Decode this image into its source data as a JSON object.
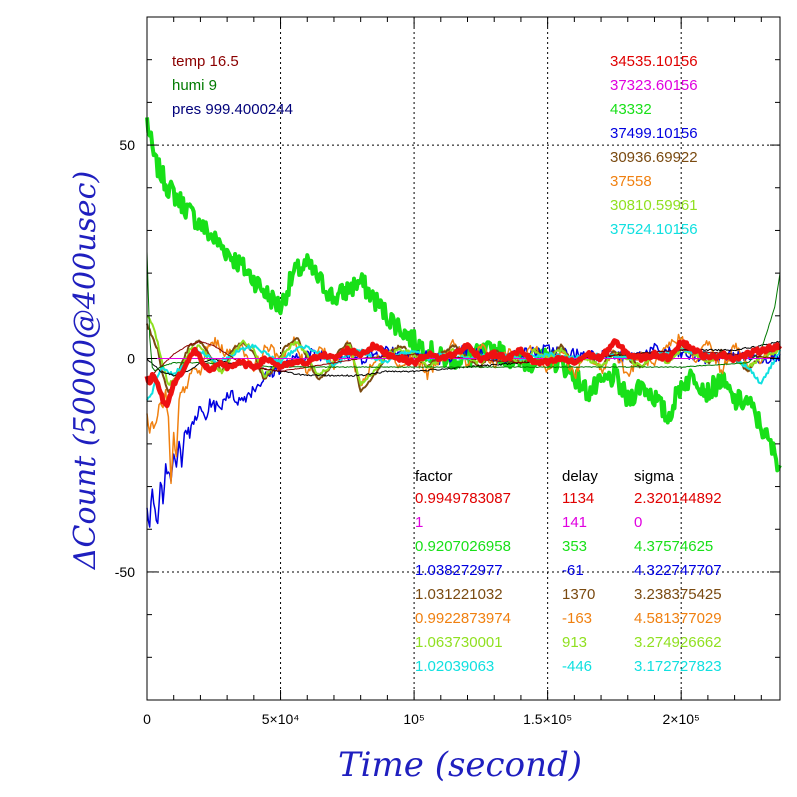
{
  "chart_data": {
    "type": "line",
    "xlabel": "Time (second)",
    "ylabel": "ΔCount (50000@400usec)",
    "xlim": [
      0,
      237000
    ],
    "ylim": [
      -80,
      80
    ],
    "grid": true,
    "x_ticks": [
      {
        "value": 0,
        "label": "0"
      },
      {
        "value": 50000,
        "label": "5×10⁴"
      },
      {
        "value": 100000,
        "label": "10⁵"
      },
      {
        "value": 150000,
        "label": "1.5×10⁵"
      },
      {
        "value": 200000,
        "label": "2×10⁵"
      }
    ],
    "y_ticks": [
      {
        "value": 50,
        "label": "50"
      },
      {
        "value": 0,
        "label": "0"
      },
      {
        "value": -50,
        "label": "-50"
      }
    ],
    "env": [
      {
        "text": "temp 16.5",
        "color": "#8b0000"
      },
      {
        "text": "humi 9",
        "color": "#007a00"
      },
      {
        "text": "pres 999.4000244",
        "color": "#00007a"
      }
    ],
    "series_values": [
      {
        "text": "34535.10156",
        "color": "#e00000"
      },
      {
        "text": "37323.60156",
        "color": "#e000e0"
      },
      {
        "text": "43332",
        "color": "#18e018"
      },
      {
        "text": "37499.10156",
        "color": "#0000e0"
      },
      {
        "text": "30936.69922",
        "color": "#7a4a10"
      },
      {
        "text": "37558",
        "color": "#f08010"
      },
      {
        "text": "30810.59961",
        "color": "#90e020"
      },
      {
        "text": "37524.10156",
        "color": "#10e0e0"
      }
    ],
    "table": {
      "headers": [
        "factor",
        "delay",
        "sigma"
      ],
      "rows": [
        {
          "factor": "0.9949783087",
          "delay": "1134",
          "sigma": "2.320144892",
          "color": "#e00000"
        },
        {
          "factor": "1",
          "delay": "141",
          "sigma": "0",
          "color": "#e000e0"
        },
        {
          "factor": "0.9207026958",
          "delay": "353",
          "sigma": "4.37574625",
          "color": "#18e018"
        },
        {
          "factor": "1.038272977",
          "delay": "-61",
          "sigma": "4.322747707",
          "color": "#0000e0"
        },
        {
          "factor": "1.031221032",
          "delay": "1370",
          "sigma": "3.238375425",
          "color": "#7a4a10"
        },
        {
          "factor": "0.9922873974",
          "delay": "-163",
          "sigma": "4.581377029",
          "color": "#f08010"
        },
        {
          "factor": "1.063730001",
          "delay": "913",
          "sigma": "3.274926662",
          "color": "#90e020"
        },
        {
          "factor": "1.02039063",
          "delay": "-446",
          "sigma": "3.172727823",
          "color": "#10e0e0"
        }
      ]
    },
    "series": [
      {
        "color": "#18e018",
        "width": 4,
        "noise": 2.5,
        "x": [
          0,
          1000,
          3000,
          8000,
          15000,
          22000,
          30000,
          38000,
          45000,
          50000,
          55000,
          60000,
          65000,
          70000,
          80000,
          90000,
          100000,
          110000,
          120000,
          130000,
          140000,
          150000,
          155000,
          160000,
          165000,
          170000,
          175000,
          180000,
          185000,
          190000,
          195000,
          200000,
          205000,
          210000,
          215000,
          220000,
          225000,
          230000,
          237000
        ],
        "y": [
          56,
          52,
          46,
          40,
          35,
          30,
          25,
          20,
          15,
          12,
          20,
          22,
          18,
          14,
          18,
          10,
          4,
          0,
          0,
          2,
          -1,
          0,
          -1,
          -4,
          -8,
          -6,
          -4,
          -10,
          -6,
          -9,
          -14,
          -6,
          -4,
          -8,
          -5,
          -10,
          -10,
          -16,
          -25
        ]
      },
      {
        "color": "#0000e0",
        "width": 1.5,
        "noise": 1.5,
        "x": [
          0,
          1000,
          2000,
          3000,
          4000,
          5000,
          6000,
          7000,
          8000,
          9000,
          10000,
          11000,
          12000,
          13000,
          14000,
          16000,
          18000,
          20000,
          22000,
          24000,
          27000,
          30000,
          35000,
          40000,
          45000,
          50000,
          60000,
          70000,
          80000,
          90000,
          100000,
          110000,
          120000,
          130000,
          140000,
          150000,
          160000,
          170000,
          180000,
          190000,
          200000,
          210000,
          220000,
          230000,
          237000
        ],
        "y": [
          -35,
          -40,
          -30,
          -35,
          -38,
          -28,
          -33,
          -25,
          -27,
          -30,
          -22,
          -26,
          -20,
          -24,
          -16,
          -18,
          -14,
          -12,
          -14,
          -10,
          -12,
          -8,
          -10,
          -7,
          -4,
          -2,
          1,
          1,
          0,
          2,
          1,
          0,
          2,
          0,
          1,
          2,
          1,
          1,
          0,
          2,
          1,
          0,
          1,
          0,
          1
        ]
      },
      {
        "color": "#f08010",
        "width": 1.5,
        "noise": 1.2,
        "x": [
          0,
          1000,
          2000,
          3000,
          4000,
          5000,
          6000,
          7000,
          8000,
          9000,
          10000,
          11000,
          12000,
          13000,
          15000,
          18000,
          20000,
          22000,
          25000,
          30000,
          35000,
          40000,
          45000,
          50000,
          55000,
          60000,
          65000,
          70000,
          75000,
          80000,
          85000,
          90000,
          95000,
          100000,
          105000,
          110000,
          115000,
          120000,
          125000,
          130000,
          135000,
          140000,
          145000,
          150000,
          155000,
          160000,
          165000,
          170000,
          175000,
          180000,
          185000,
          190000,
          195000,
          200000,
          205000,
          210000,
          215000,
          220000,
          225000,
          230000,
          237000
        ],
        "y": [
          -12,
          -18,
          -15,
          -16,
          -14,
          -10,
          -12,
          -8,
          -14,
          -30,
          -18,
          -24,
          -10,
          -8,
          -6,
          -2,
          -4,
          2,
          4,
          1,
          3,
          -2,
          3,
          0,
          4,
          -3,
          3,
          -2,
          4,
          -6,
          -1,
          2,
          -2,
          1,
          -4,
          0,
          4,
          -2,
          3,
          -2,
          2,
          -1,
          3,
          -3,
          2,
          -4,
          1,
          -3,
          2,
          -4,
          1,
          -2,
          3,
          5,
          -1,
          4,
          -3,
          3,
          -2,
          0,
          3
        ]
      },
      {
        "color": "#7a4a10",
        "width": 2,
        "noise": 0.4,
        "x": [
          0,
          2000,
          4000,
          6000,
          8000,
          10000,
          13000,
          16000,
          20000,
          24000,
          28000,
          32000,
          36000,
          40000,
          44000,
          48000,
          52000,
          56000,
          60000,
          64000,
          68000,
          72000,
          76000,
          80000,
          85000,
          90000,
          95000,
          100000,
          105000,
          110000,
          115000,
          120000,
          125000,
          130000,
          135000,
          140000,
          145000,
          150000,
          155000,
          160000,
          165000,
          170000,
          175000,
          180000,
          185000,
          190000,
          195000,
          200000,
          205000,
          210000,
          215000,
          220000,
          225000,
          230000,
          237000
        ],
        "y": [
          8,
          5,
          2,
          -4,
          -8,
          -6,
          -1,
          3,
          4,
          0,
          -3,
          2,
          4,
          1,
          -5,
          -2,
          3,
          5,
          0,
          -5,
          -3,
          2,
          4,
          -8,
          -4,
          1,
          3,
          1,
          -2,
          1,
          3,
          0,
          -2,
          2,
          0,
          -1,
          2,
          0,
          3,
          -1,
          1,
          -2,
          2,
          0,
          -2,
          1,
          -1,
          3,
          1,
          -1,
          2,
          0,
          -3,
          1,
          3
        ]
      },
      {
        "color": "#90e020",
        "width": 2,
        "noise": 0.5,
        "x": [
          0,
          2000,
          4000,
          6000,
          8000,
          10000,
          13000,
          16000,
          20000,
          24000,
          28000,
          32000,
          36000,
          40000,
          44000,
          48000,
          52000,
          56000,
          60000,
          64000,
          68000,
          72000,
          76000,
          80000,
          85000,
          90000,
          95000,
          100000,
          105000,
          110000,
          115000,
          120000,
          125000,
          130000,
          135000,
          140000,
          145000,
          150000,
          155000,
          160000,
          165000,
          170000,
          175000,
          180000,
          185000,
          190000,
          195000,
          200000,
          205000,
          210000,
          215000,
          220000,
          225000,
          230000,
          237000
        ],
        "y": [
          10,
          8,
          4,
          -2,
          -6,
          -5,
          -2,
          2,
          3,
          -1,
          -3,
          1,
          4,
          2,
          -4,
          -2,
          2,
          4,
          1,
          -4,
          -2,
          1,
          3,
          -6,
          -3,
          1,
          2,
          1,
          -2,
          0,
          2,
          0,
          -1,
          1,
          0,
          -1,
          2,
          0,
          2,
          -1,
          0,
          -2,
          1,
          0,
          -2,
          1,
          -1,
          2,
          1,
          -1,
          1,
          0,
          -2,
          0,
          2
        ]
      },
      {
        "color": "#10e0e0",
        "width": 2,
        "noise": 0.5,
        "x": [
          0,
          2000,
          4000,
          6000,
          8000,
          10000,
          14000,
          18000,
          22000,
          26000,
          30000,
          35000,
          40000,
          45000,
          50000,
          55000,
          60000,
          65000,
          70000,
          75000,
          80000,
          85000,
          90000,
          95000,
          100000,
          105000,
          110000,
          120000,
          130000,
          140000,
          150000,
          160000,
          170000,
          180000,
          190000,
          200000,
          210000,
          220000,
          225000,
          230000,
          237000
        ],
        "y": [
          -10,
          -8,
          -4,
          -2,
          -3,
          -4,
          -1,
          2,
          1,
          -1,
          0,
          2,
          3,
          1,
          -1,
          2,
          3,
          1,
          -2,
          1,
          2,
          0,
          -1,
          1,
          2,
          0,
          1,
          0,
          1,
          0,
          1,
          0,
          1,
          0,
          1,
          2,
          1,
          0,
          -2,
          -6,
          2
        ]
      },
      {
        "color": "#000000",
        "width": 1,
        "noise": 0.2,
        "x": [
          0,
          5000,
          10000,
          15000,
          20000,
          25000,
          30000,
          40000,
          50000,
          60000,
          70000,
          80000,
          90000,
          100000,
          120000,
          140000,
          160000,
          180000,
          200000,
          220000,
          230000,
          237000
        ],
        "y": [
          0,
          -3,
          -4,
          -3,
          -1,
          0,
          -1,
          -2,
          -3,
          -4,
          -4,
          -4,
          -3,
          -3,
          -2,
          -1,
          0,
          1,
          2,
          2,
          3,
          4
        ]
      },
      {
        "color": "#8b0000",
        "width": 1,
        "noise": 0.1,
        "x": [
          0,
          5000,
          10000,
          15000,
          20000,
          25000,
          30000,
          35000,
          40000,
          50000,
          60000,
          70000,
          80000,
          100000,
          120000,
          140000,
          160000,
          180000,
          200000,
          220000,
          237000
        ],
        "y": [
          -5,
          -2,
          1,
          3,
          4,
          3,
          1,
          -1,
          -2,
          -3,
          -2,
          -1,
          0,
          1,
          0,
          -1,
          0,
          1,
          2,
          1,
          0
        ]
      },
      {
        "color": "#007a00",
        "width": 1,
        "noise": 0.1,
        "x": [
          0,
          1000,
          2000,
          3000,
          5000,
          10000,
          20000,
          50000,
          100000,
          150000,
          200000,
          225000,
          230000,
          235000,
          237000
        ],
        "y": [
          25,
          5,
          -2,
          -3,
          -2,
          -1,
          -1,
          -2,
          -2,
          -2,
          -2,
          -1,
          2,
          12,
          20
        ]
      },
      {
        "color": "#e000e0",
        "width": 1,
        "noise": 0,
        "x": [
          0,
          237000
        ],
        "y": [
          0,
          0
        ]
      },
      {
        "color": "#ee1111",
        "width": 5,
        "noise": 0.6,
        "x": [
          0,
          1000,
          2000,
          3000,
          4000,
          5000,
          6000,
          7000,
          8000,
          9000,
          10000,
          12000,
          14000,
          16000,
          18000,
          20000,
          22000,
          24000,
          26000,
          28000,
          30000,
          35000,
          40000,
          45000,
          50000,
          55000,
          60000,
          65000,
          70000,
          75000,
          80000,
          85000,
          90000,
          95000,
          100000,
          105000,
          110000,
          115000,
          120000,
          125000,
          130000,
          135000,
          140000,
          145000,
          150000,
          155000,
          160000,
          165000,
          170000,
          175000,
          180000,
          185000,
          190000,
          195000,
          200000,
          205000,
          210000,
          215000,
          220000,
          225000,
          230000,
          237000
        ],
        "y": [
          -4,
          -6,
          -4,
          -5,
          -6,
          -8,
          -10,
          -11,
          -10,
          -8,
          -6,
          -4,
          -2,
          0,
          2,
          0,
          -2,
          -3,
          -2,
          -1,
          -2,
          -1,
          -2,
          0,
          -2,
          -1,
          -1,
          1,
          0,
          2,
          1,
          3,
          1,
          0,
          -1,
          1,
          0,
          1,
          3,
          0,
          1,
          0,
          2,
          -1,
          -1,
          0,
          -1,
          1,
          0,
          4,
          1,
          0,
          1,
          0,
          4,
          2,
          0,
          1,
          0,
          1,
          2,
          3
        ]
      }
    ]
  }
}
